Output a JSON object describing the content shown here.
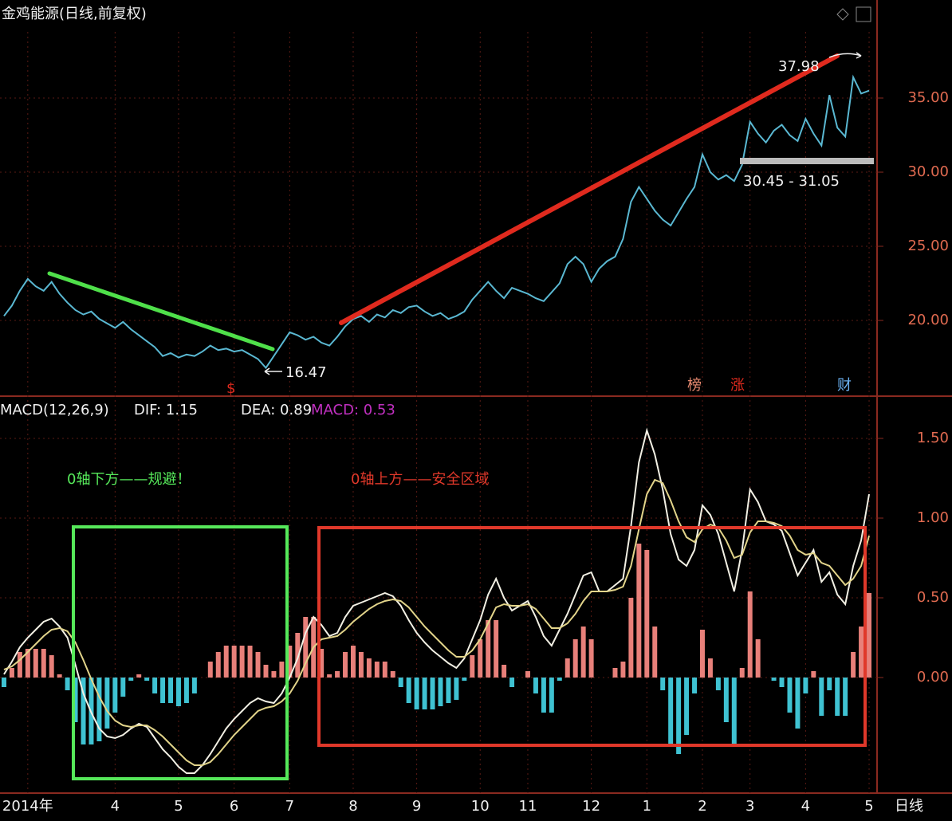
{
  "chart_data": [
    {
      "type": "price",
      "title": "金鸡能源(日线,前复权)",
      "color": "#5ab8d2",
      "values": [
        20.3,
        21.0,
        22.0,
        22.8,
        22.3,
        22.0,
        22.6,
        21.8,
        21.2,
        20.7,
        20.4,
        20.6,
        20.1,
        19.8,
        19.5,
        19.9,
        19.4,
        19.0,
        18.6,
        18.2,
        17.6,
        17.8,
        17.5,
        17.7,
        17.6,
        17.9,
        18.3,
        18.0,
        18.1,
        17.9,
        18.0,
        17.7,
        17.4,
        16.8,
        17.6,
        18.4,
        19.2,
        19.0,
        18.7,
        18.9,
        18.5,
        18.3,
        18.9,
        19.6,
        20.1,
        20.3,
        19.9,
        20.4,
        20.2,
        20.7,
        20.5,
        20.9,
        21.0,
        20.6,
        20.3,
        20.5,
        20.1,
        20.3,
        20.6,
        21.4,
        22.0,
        22.6,
        22.0,
        21.5,
        22.2,
        22.0,
        21.8,
        21.5,
        21.3,
        21.9,
        22.5,
        23.8,
        24.3,
        23.8,
        22.6,
        23.5,
        24.0,
        24.3,
        25.5,
        28.0,
        29.0,
        28.2,
        27.4,
        26.8,
        26.4,
        27.3,
        28.2,
        29.0,
        31.2,
        30.0,
        29.5,
        29.8,
        29.4,
        30.5,
        33.4,
        32.6,
        32.0,
        32.8,
        33.2,
        32.5,
        32.1,
        33.6,
        32.6,
        31.8,
        35.2,
        33.0,
        32.4,
        36.4,
        35.3,
        35.5
      ],
      "ylim": [
        15,
        40
      ],
      "yticks": [
        {
          "value": 20,
          "label": "20.00"
        },
        {
          "value": 25,
          "label": "25.00"
        },
        {
          "value": 30,
          "label": "30.00"
        },
        {
          "value": 35,
          "label": "35.00"
        }
      ],
      "grid": true,
      "annotations": [
        "37.98",
        "30.45 - 31.05",
        "16.47",
        "$",
        "榜",
        "涨",
        "财"
      ]
    },
    {
      "type": "macd",
      "indicator": "MACD(12,26,9)",
      "dif_label": "DIF: 1.15",
      "dea_label": "DEA: 0.89",
      "macd_label": "MACD: 0.53",
      "categories": [
        null,
        null,
        null,
        "2014年",
        null,
        null,
        null,
        null,
        null,
        null,
        null,
        null,
        null,
        null,
        "4",
        null,
        null,
        null,
        null,
        null,
        null,
        null,
        "5",
        null,
        null,
        null,
        null,
        null,
        null,
        "6",
        null,
        null,
        null,
        null,
        null,
        null,
        "7",
        null,
        null,
        null,
        null,
        null,
        null,
        null,
        "8",
        null,
        null,
        null,
        null,
        null,
        null,
        null,
        "9",
        null,
        null,
        null,
        null,
        null,
        null,
        null,
        "10",
        null,
        null,
        null,
        null,
        null,
        "11",
        null,
        null,
        null,
        null,
        null,
        null,
        null,
        "12",
        null,
        null,
        null,
        null,
        null,
        null,
        "1",
        null,
        null,
        null,
        null,
        null,
        null,
        "2",
        null,
        null,
        null,
        null,
        null,
        "3",
        null,
        null,
        null,
        null,
        null,
        null,
        "4",
        null,
        null,
        null,
        null,
        null,
        null,
        null,
        "5"
      ],
      "period": "日线",
      "series": [
        {
          "color": "#f2f0e4",
          "values": [
            0.02,
            0.1,
            0.19,
            0.25,
            0.3,
            0.35,
            0.37,
            0.32,
            0.25,
            0.08,
            -0.1,
            -0.22,
            -0.32,
            -0.37,
            -0.38,
            -0.36,
            -0.32,
            -0.29,
            -0.31,
            -0.38,
            -0.45,
            -0.5,
            -0.56,
            -0.6,
            -0.6,
            -0.55,
            -0.48,
            -0.4,
            -0.32,
            -0.26,
            -0.21,
            -0.16,
            -0.13,
            -0.15,
            -0.16,
            -0.1,
            0.0,
            0.12,
            0.28,
            0.38,
            0.33,
            0.26,
            0.28,
            0.38,
            0.45,
            0.47,
            0.49,
            0.51,
            0.53,
            0.51,
            0.45,
            0.36,
            0.28,
            0.22,
            0.17,
            0.13,
            0.09,
            0.06,
            0.12,
            0.24,
            0.36,
            0.52,
            0.62,
            0.5,
            0.42,
            0.45,
            0.48,
            0.38,
            0.26,
            0.2,
            0.3,
            0.4,
            0.52,
            0.64,
            0.66,
            0.54,
            0.54,
            0.58,
            0.62,
            0.95,
            1.35,
            1.55,
            1.4,
            1.18,
            0.9,
            0.74,
            0.7,
            0.8,
            1.08,
            1.02,
            0.9,
            0.72,
            0.54,
            0.8,
            1.18,
            1.1,
            0.98,
            0.96,
            0.92,
            0.78,
            0.64,
            0.72,
            0.8,
            0.6,
            0.66,
            0.52,
            0.46,
            0.7,
            0.86,
            1.15
          ]
        },
        {
          "color": "#e2d48a",
          "values": [
            0.05,
            0.07,
            0.11,
            0.16,
            0.21,
            0.26,
            0.3,
            0.31,
            0.29,
            0.22,
            0.11,
            -0.01,
            -0.12,
            -0.21,
            -0.27,
            -0.3,
            -0.31,
            -0.3,
            -0.3,
            -0.33,
            -0.37,
            -0.42,
            -0.47,
            -0.52,
            -0.55,
            -0.55,
            -0.53,
            -0.48,
            -0.42,
            -0.36,
            -0.31,
            -0.26,
            -0.21,
            -0.19,
            -0.18,
            -0.15,
            -0.1,
            -0.02,
            0.09,
            0.19,
            0.24,
            0.25,
            0.26,
            0.3,
            0.35,
            0.39,
            0.43,
            0.46,
            0.48,
            0.49,
            0.48,
            0.44,
            0.38,
            0.32,
            0.27,
            0.22,
            0.17,
            0.13,
            0.13,
            0.17,
            0.24,
            0.34,
            0.44,
            0.46,
            0.45,
            0.45,
            0.46,
            0.43,
            0.37,
            0.31,
            0.31,
            0.34,
            0.4,
            0.48,
            0.54,
            0.54,
            0.54,
            0.55,
            0.57,
            0.7,
            0.93,
            1.15,
            1.24,
            1.22,
            1.11,
            0.98,
            0.88,
            0.85,
            0.93,
            0.96,
            0.94,
            0.86,
            0.75,
            0.77,
            0.91,
            0.98,
            0.98,
            0.97,
            0.95,
            0.89,
            0.8,
            0.77,
            0.78,
            0.72,
            0.7,
            0.64,
            0.58,
            0.62,
            0.7,
            0.89
          ]
        }
      ],
      "histogram": {
        "up_color": "#e8807a",
        "down_color": "#3fc2d2",
        "values": [
          -0.06,
          0.06,
          0.16,
          0.18,
          0.18,
          0.18,
          0.14,
          0.02,
          -0.08,
          -0.28,
          -0.42,
          -0.42,
          -0.4,
          -0.32,
          -0.22,
          -0.12,
          -0.02,
          0.02,
          -0.02,
          -0.1,
          -0.16,
          -0.16,
          -0.18,
          -0.16,
          -0.1,
          0.0,
          0.1,
          0.16,
          0.2,
          0.2,
          0.2,
          0.2,
          0.16,
          0.08,
          0.04,
          0.1,
          0.2,
          0.28,
          0.38,
          0.38,
          0.18,
          0.02,
          0.04,
          0.16,
          0.2,
          0.16,
          0.12,
          0.1,
          0.1,
          0.04,
          -0.06,
          -0.16,
          -0.2,
          -0.2,
          -0.2,
          -0.18,
          -0.16,
          -0.14,
          -0.02,
          0.14,
          0.24,
          0.36,
          0.36,
          0.08,
          -0.06,
          0.0,
          0.04,
          -0.1,
          -0.22,
          -0.22,
          -0.02,
          0.12,
          0.24,
          0.32,
          0.24,
          0.0,
          0.0,
          0.06,
          0.1,
          0.5,
          0.84,
          0.8,
          0.32,
          -0.08,
          -0.42,
          -0.48,
          -0.36,
          -0.1,
          0.3,
          0.12,
          -0.08,
          -0.28,
          -0.42,
          0.06,
          0.54,
          0.24,
          0.0,
          -0.02,
          -0.06,
          -0.22,
          -0.32,
          -0.1,
          0.04,
          -0.24,
          -0.08,
          -0.24,
          -0.24,
          0.16,
          0.32,
          0.53
        ]
      },
      "ylim": [
        -0.7,
        1.75
      ],
      "yticks": [
        {
          "value": 0,
          "label": "0.00"
        },
        {
          "value": 0.5,
          "label": "0.50"
        },
        {
          "value": 1,
          "label": "1.00"
        },
        {
          "value": 1.5,
          "label": "1.50"
        }
      ],
      "grid": true,
      "annotations": [
        "0轴下方——规避！",
        "0轴上方——安全区域"
      ]
    }
  ]
}
